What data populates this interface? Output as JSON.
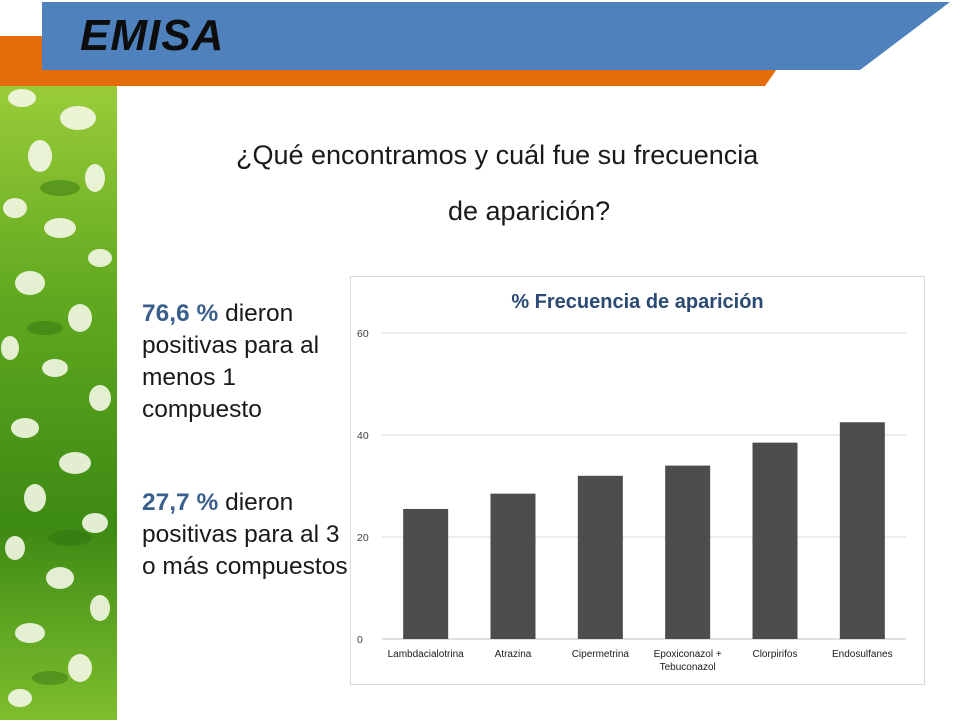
{
  "header": {
    "brand": "EMISA",
    "colors": {
      "blue": "#4f81bd",
      "orange": "#e46c0a"
    }
  },
  "question": {
    "line1": "¿Qué encontramos y cuál fue su frecuencia",
    "line2": "de aparición?"
  },
  "stats": [
    {
      "value": "76,6 %",
      "text": " dieron positivas para al menos 1 compuesto"
    },
    {
      "value": "27,7 %",
      "text": " dieron positivas para al 3 o más compuestos"
    }
  ],
  "chart_data": {
    "type": "bar",
    "title": "% Frecuencia de aparición",
    "categories": [
      "Lambdacialotrina",
      "Atrazina",
      "Cipermetrina",
      "Epoxiconazol + Tebuconazol",
      "Clorpirifos",
      "Endosulfanes"
    ],
    "category_lines": [
      [
        "Lambdacialotrina"
      ],
      [
        "Atrazina"
      ],
      [
        "Cipermetrina"
      ],
      [
        "Epoxiconazol +",
        "Tebuconazol"
      ],
      [
        "Clorpirifos"
      ],
      [
        "Endosulfanes"
      ]
    ],
    "values": [
      25.5,
      28.5,
      32,
      34,
      38.5,
      42.5
    ],
    "ylim": [
      0,
      60
    ],
    "yticks": [
      0,
      20,
      40,
      60
    ],
    "xlabel": "",
    "ylabel": "",
    "grid": true,
    "bar_color": "#4d4d4d"
  }
}
